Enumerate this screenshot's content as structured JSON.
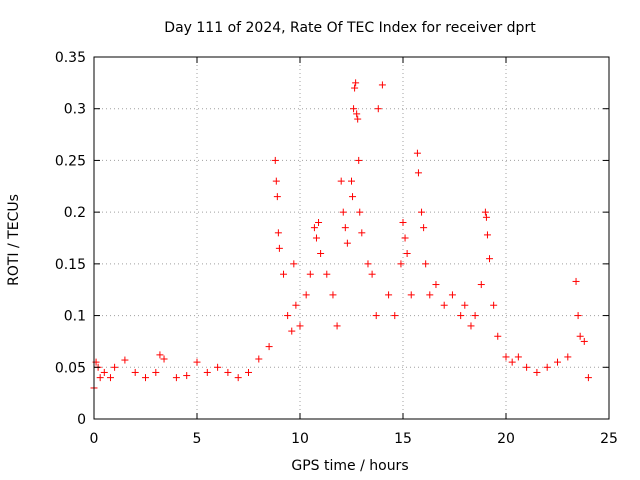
{
  "chart_data": {
    "type": "scatter",
    "title": "Day 111 of 2024, Rate Of TEC Index for receiver dprt",
    "xlabel": "GPS time / hours",
    "ylabel": "ROTI / TECUs",
    "xlim": [
      0,
      25
    ],
    "ylim": [
      0,
      0.35
    ],
    "x_ticks": [
      0,
      5,
      10,
      15,
      20,
      25
    ],
    "y_ticks": [
      0,
      0.05,
      0.1,
      0.15,
      0.2,
      0.25,
      0.3,
      0.35
    ],
    "x_tick_labels": [
      "0",
      "5",
      "10",
      "15",
      "20",
      "25"
    ],
    "y_tick_labels": [
      "0",
      "0.05",
      "0.1",
      "0.15",
      "0.2",
      "0.25",
      "0.3",
      "0.35"
    ],
    "grid": true,
    "marker": "plus",
    "color": "#ff0000",
    "series": [
      {
        "points": [
          [
            0.0,
            0.03
          ],
          [
            0.1,
            0.055
          ],
          [
            0.2,
            0.05
          ],
          [
            0.3,
            0.04
          ],
          [
            0.5,
            0.045
          ],
          [
            0.8,
            0.04
          ],
          [
            1.0,
            0.05
          ],
          [
            1.5,
            0.057
          ],
          [
            2.0,
            0.045
          ],
          [
            2.5,
            0.04
          ],
          [
            3.0,
            0.045
          ],
          [
            3.2,
            0.062
          ],
          [
            3.4,
            0.058
          ],
          [
            4.0,
            0.04
          ],
          [
            4.5,
            0.042
          ],
          [
            5.0,
            0.055
          ],
          [
            5.5,
            0.045
          ],
          [
            6.0,
            0.05
          ],
          [
            6.5,
            0.045
          ],
          [
            7.0,
            0.04
          ],
          [
            7.5,
            0.045
          ],
          [
            8.0,
            0.058
          ],
          [
            8.5,
            0.07
          ],
          [
            8.8,
            0.25
          ],
          [
            8.85,
            0.23
          ],
          [
            8.9,
            0.215
          ],
          [
            8.95,
            0.18
          ],
          [
            9.0,
            0.165
          ],
          [
            9.2,
            0.14
          ],
          [
            9.4,
            0.1
          ],
          [
            9.6,
            0.085
          ],
          [
            9.7,
            0.15
          ],
          [
            9.8,
            0.11
          ],
          [
            10.0,
            0.09
          ],
          [
            10.3,
            0.12
          ],
          [
            10.5,
            0.14
          ],
          [
            10.7,
            0.185
          ],
          [
            10.8,
            0.175
          ],
          [
            10.9,
            0.19
          ],
          [
            11.0,
            0.16
          ],
          [
            11.3,
            0.14
          ],
          [
            11.6,
            0.12
          ],
          [
            11.8,
            0.09
          ],
          [
            12.0,
            0.23
          ],
          [
            12.1,
            0.2
          ],
          [
            12.2,
            0.185
          ],
          [
            12.3,
            0.17
          ],
          [
            12.5,
            0.23
          ],
          [
            12.55,
            0.215
          ],
          [
            12.6,
            0.3
          ],
          [
            12.65,
            0.32
          ],
          [
            12.7,
            0.325
          ],
          [
            12.75,
            0.295
          ],
          [
            12.8,
            0.29
          ],
          [
            12.85,
            0.25
          ],
          [
            12.9,
            0.2
          ],
          [
            13.0,
            0.18
          ],
          [
            13.3,
            0.15
          ],
          [
            13.5,
            0.14
          ],
          [
            13.7,
            0.1
          ],
          [
            13.8,
            0.3
          ],
          [
            14.0,
            0.323
          ],
          [
            14.3,
            0.12
          ],
          [
            14.6,
            0.1
          ],
          [
            14.9,
            0.15
          ],
          [
            15.0,
            0.19
          ],
          [
            15.1,
            0.175
          ],
          [
            15.2,
            0.16
          ],
          [
            15.4,
            0.12
          ],
          [
            15.7,
            0.257
          ],
          [
            15.75,
            0.238
          ],
          [
            15.9,
            0.2
          ],
          [
            16.0,
            0.185
          ],
          [
            16.1,
            0.15
          ],
          [
            16.3,
            0.12
          ],
          [
            16.6,
            0.13
          ],
          [
            17.0,
            0.11
          ],
          [
            17.4,
            0.12
          ],
          [
            17.8,
            0.1
          ],
          [
            18.0,
            0.11
          ],
          [
            18.3,
            0.09
          ],
          [
            18.5,
            0.1
          ],
          [
            18.8,
            0.13
          ],
          [
            19.0,
            0.2
          ],
          [
            19.05,
            0.195
          ],
          [
            19.1,
            0.178
          ],
          [
            19.2,
            0.155
          ],
          [
            19.4,
            0.11
          ],
          [
            19.6,
            0.08
          ],
          [
            20.0,
            0.06
          ],
          [
            20.3,
            0.055
          ],
          [
            20.6,
            0.06
          ],
          [
            21.0,
            0.05
          ],
          [
            21.5,
            0.045
          ],
          [
            22.0,
            0.05
          ],
          [
            22.5,
            0.055
          ],
          [
            23.0,
            0.06
          ],
          [
            23.4,
            0.133
          ],
          [
            23.5,
            0.1
          ],
          [
            23.6,
            0.08
          ],
          [
            23.8,
            0.075
          ],
          [
            24.0,
            0.04
          ]
        ]
      }
    ]
  }
}
